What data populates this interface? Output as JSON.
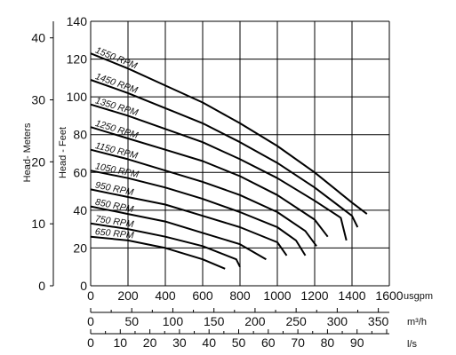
{
  "chart_data": {
    "type": "line",
    "x_unit_label": "usgpm",
    "xlim": [
      0,
      1600
    ],
    "x_ticks": [
      0,
      200,
      400,
      600,
      800,
      1000,
      1200,
      1400,
      1600
    ],
    "ylim_feet": [
      0,
      140
    ],
    "y_ticks_feet": [
      0,
      20,
      40,
      60,
      80,
      100,
      120,
      140
    ],
    "ylabel_feet": "Head - Feet",
    "y_ticks_meters": [
      0,
      10,
      20,
      30,
      40
    ],
    "ylabel_meters": "Head- Meters",
    "grid": true,
    "secondary_x_axes": [
      {
        "unit_label": "m³/h",
        "ticks": [
          0,
          50,
          100,
          150,
          200,
          250,
          300,
          350
        ],
        "max": 363.4
      },
      {
        "unit_label": "l/s",
        "ticks": [
          0,
          10,
          20,
          30,
          40,
          50,
          60,
          70,
          80,
          90
        ],
        "max": 100.9
      }
    ],
    "series": [
      {
        "name": "1550 RPM",
        "points": [
          [
            0,
            123
          ],
          [
            200,
            115
          ],
          [
            400,
            106
          ],
          [
            600,
            97
          ],
          [
            800,
            86
          ],
          [
            1000,
            74
          ],
          [
            1200,
            60
          ],
          [
            1400,
            44
          ],
          [
            1480,
            38
          ]
        ]
      },
      {
        "name": "1450 RPM",
        "points": [
          [
            0,
            109
          ],
          [
            200,
            102
          ],
          [
            400,
            94
          ],
          [
            600,
            86
          ],
          [
            800,
            76
          ],
          [
            1000,
            65
          ],
          [
            1200,
            52
          ],
          [
            1400,
            37
          ],
          [
            1430,
            31
          ]
        ]
      },
      {
        "name": "1350 RPM",
        "points": [
          [
            0,
            96
          ],
          [
            200,
            90
          ],
          [
            400,
            83
          ],
          [
            600,
            76
          ],
          [
            800,
            67
          ],
          [
            1000,
            57
          ],
          [
            1200,
            45
          ],
          [
            1340,
            36
          ],
          [
            1370,
            24
          ]
        ]
      },
      {
        "name": "1250 RPM",
        "points": [
          [
            0,
            84
          ],
          [
            200,
            78
          ],
          [
            400,
            72
          ],
          [
            600,
            66
          ],
          [
            800,
            58
          ],
          [
            1000,
            48
          ],
          [
            1200,
            35
          ],
          [
            1270,
            26
          ]
        ]
      },
      {
        "name": "1150 RPM",
        "points": [
          [
            0,
            72
          ],
          [
            200,
            67
          ],
          [
            400,
            61
          ],
          [
            600,
            55
          ],
          [
            800,
            48
          ],
          [
            1000,
            39
          ],
          [
            1150,
            29
          ],
          [
            1210,
            21
          ]
        ]
      },
      {
        "name": "1050 RPM",
        "points": [
          [
            0,
            61
          ],
          [
            200,
            57
          ],
          [
            400,
            52
          ],
          [
            600,
            46
          ],
          [
            800,
            39
          ],
          [
            1000,
            31
          ],
          [
            1100,
            24
          ],
          [
            1150,
            16
          ]
        ]
      },
      {
        "name": "950 RPM",
        "points": [
          [
            0,
            51
          ],
          [
            200,
            47
          ],
          [
            400,
            43
          ],
          [
            600,
            37
          ],
          [
            800,
            31
          ],
          [
            1000,
            23
          ],
          [
            1050,
            16
          ]
        ]
      },
      {
        "name": "850 RPM",
        "points": [
          [
            0,
            42
          ],
          [
            200,
            38
          ],
          [
            400,
            34
          ],
          [
            600,
            28
          ],
          [
            800,
            22
          ],
          [
            940,
            14
          ]
        ]
      },
      {
        "name": "750 RPM",
        "points": [
          [
            0,
            33
          ],
          [
            200,
            30
          ],
          [
            400,
            26
          ],
          [
            600,
            21
          ],
          [
            780,
            14
          ],
          [
            800,
            10
          ]
        ]
      },
      {
        "name": "650 RPM",
        "points": [
          [
            0,
            26
          ],
          [
            200,
            24
          ],
          [
            400,
            20
          ],
          [
            600,
            14
          ],
          [
            720,
            9
          ]
        ]
      }
    ]
  }
}
